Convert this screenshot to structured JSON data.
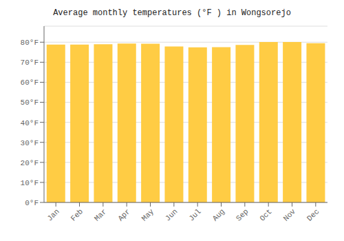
{
  "chart_data": {
    "type": "bar",
    "title": "Average monthly temperatures (°F ) in Wongsorejo",
    "categories": [
      "Jan",
      "Feb",
      "Mar",
      "Apr",
      "May",
      "Jun",
      "Jul",
      "Aug",
      "Sep",
      "Oct",
      "Nov",
      "Dec"
    ],
    "values": [
      78.8,
      78.8,
      79.0,
      79.3,
      79.2,
      77.9,
      77.4,
      77.5,
      78.6,
      80.1,
      80.1,
      79.5
    ],
    "color": "#FFCC44",
    "ylim": [
      0,
      88
    ],
    "yticks": [
      {
        "value": 0,
        "label": "0°F"
      },
      {
        "value": 10,
        "label": "10°F"
      },
      {
        "value": 20,
        "label": "20°F"
      },
      {
        "value": 30,
        "label": "30°F"
      },
      {
        "value": 40,
        "label": "40°F"
      },
      {
        "value": 50,
        "label": "50°F"
      },
      {
        "value": 60,
        "label": "60°F"
      },
      {
        "value": 70,
        "label": "70°F"
      },
      {
        "value": 80,
        "label": "80°F"
      }
    ],
    "grid": true
  }
}
